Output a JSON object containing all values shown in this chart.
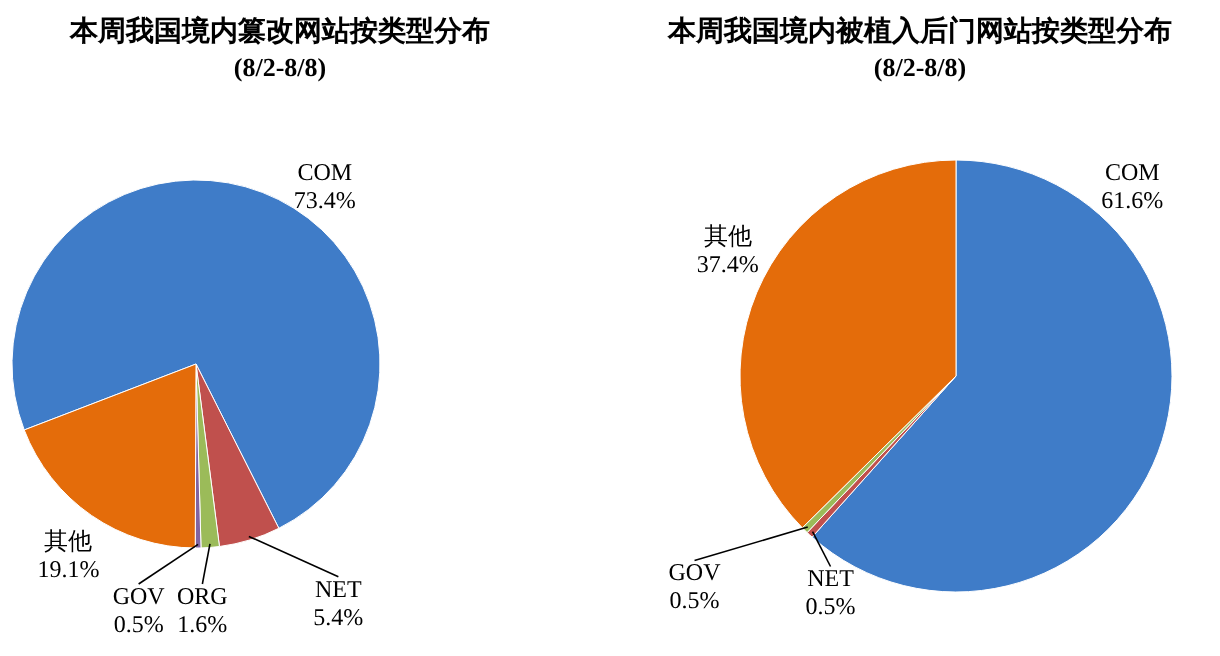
{
  "chart_data": [
    {
      "type": "pie",
      "title": "本周我国境内篡改网站按类型分布",
      "subtitle": "(8/2-8/8)",
      "categories": [
        "COM",
        "NET",
        "ORG",
        "GOV",
        "其他"
      ],
      "values": [
        73.4,
        5.4,
        1.6,
        0.5,
        19.1
      ],
      "colors": [
        "#3f7cc8",
        "#c0504d",
        "#9bbb59",
        "#8064a2",
        "#e46c0a"
      ],
      "value_labels": [
        "73.4%",
        "5.4%",
        "1.6%",
        "0.5%",
        "19.1%"
      ]
    },
    {
      "type": "pie",
      "title": "本周我国境内被植入后门网站按类型分布",
      "subtitle": "(8/2-8/8)",
      "categories": [
        "COM",
        "NET",
        "GOV",
        "其他"
      ],
      "values": [
        61.6,
        0.5,
        0.5,
        37.4
      ],
      "colors": [
        "#3f7cc8",
        "#c0504d",
        "#9bbb59",
        "#e46c0a"
      ],
      "value_labels": [
        "61.6%",
        "0.5%",
        "0.5%",
        "37.4%"
      ]
    }
  ]
}
